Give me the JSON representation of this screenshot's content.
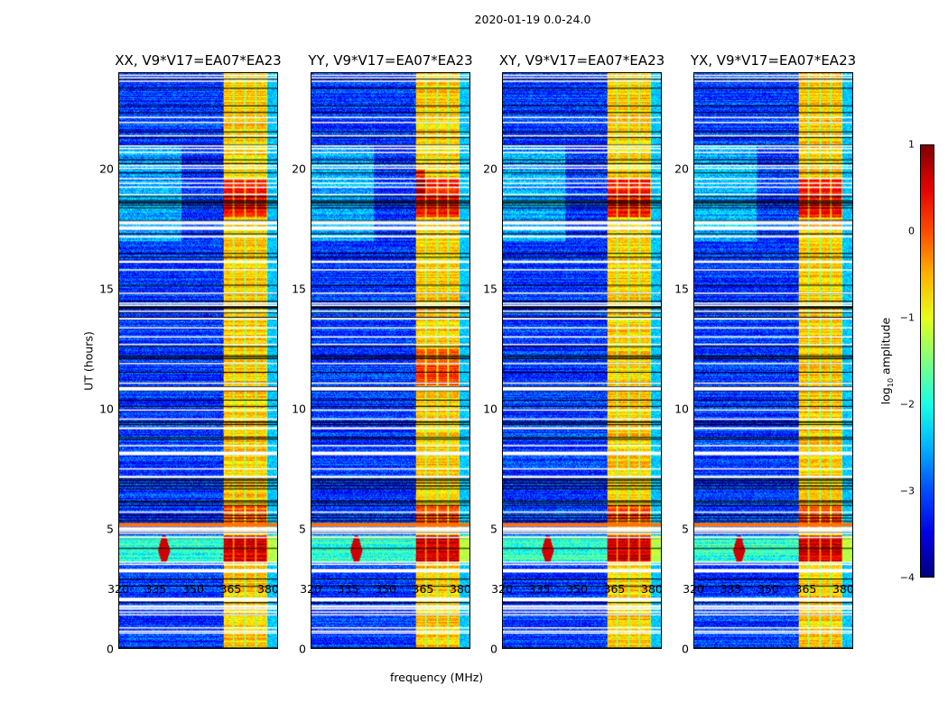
{
  "figure_title": "2020-01-19 0.0-24.0",
  "chart_data": {
    "type": "heatmap",
    "title": "2020-01-19 0.0-24.0",
    "xlabel": "frequency (MHz)",
    "ylabel": "UT (hours)",
    "xlim": [
      320,
      384
    ],
    "ylim": [
      0,
      24
    ],
    "xticks": [
      "320",
      "335",
      "350",
      "365",
      "380"
    ],
    "yticks": [
      "0",
      "5",
      "10",
      "15",
      "20"
    ],
    "panels": [
      {
        "title": "XX, V9*V17=EA07*EA23"
      },
      {
        "title": "YY, V9*V17=EA07*EA23"
      },
      {
        "title": "XY, V9*V17=EA07*EA23"
      },
      {
        "title": "YX, V9*V17=EA07*EA23"
      }
    ],
    "colorbar": {
      "label": "log10 amplitude",
      "label_main": "log",
      "label_sub": "10",
      "label_rest": " amplitude",
      "range": [
        -4,
        1
      ],
      "ticks": [
        "1",
        "0",
        "−1",
        "−2",
        "−3",
        "−4"
      ],
      "colormap": "jet"
    },
    "bright_band_mhz": [
      362,
      380
    ],
    "bright_hours": [
      18,
      19.5
    ],
    "rfi_burst_hours": [
      3.5,
      4.7
    ],
    "rfi_burst_peak_mhz": 338
  }
}
